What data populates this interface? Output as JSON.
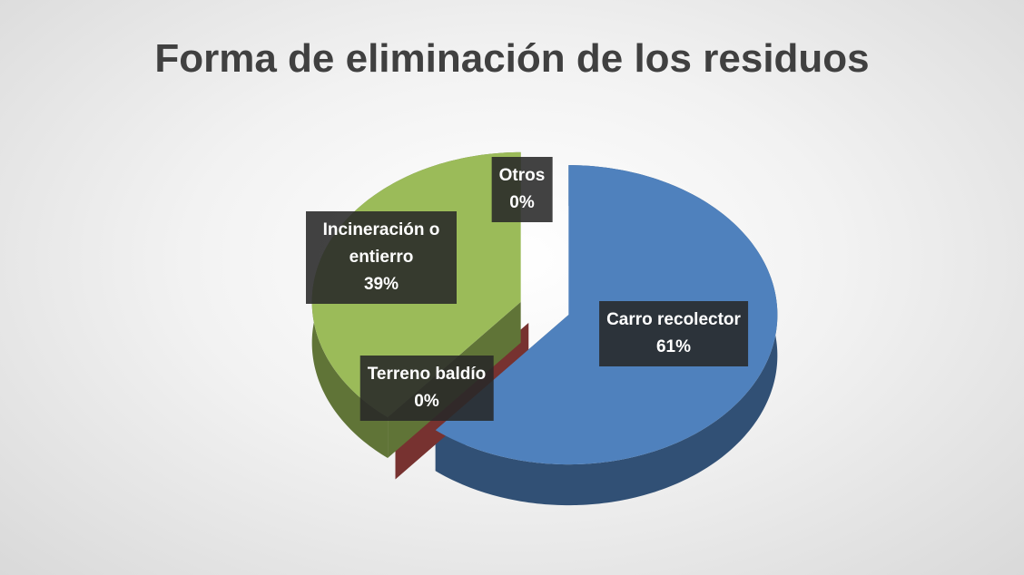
{
  "chart_data": {
    "type": "pie",
    "title": "Forma de eliminación de los residuos",
    "categories": [
      "Carro recolector",
      "Terreno baldío",
      "Incineración o entierro",
      "Otros"
    ],
    "values": [
      61,
      0,
      39,
      0
    ],
    "value_labels": [
      "61%",
      "0%",
      "39%",
      "0%"
    ],
    "colors": [
      "#4f81bd",
      "#c0504d",
      "#9bbb59",
      "#8064a2"
    ]
  }
}
